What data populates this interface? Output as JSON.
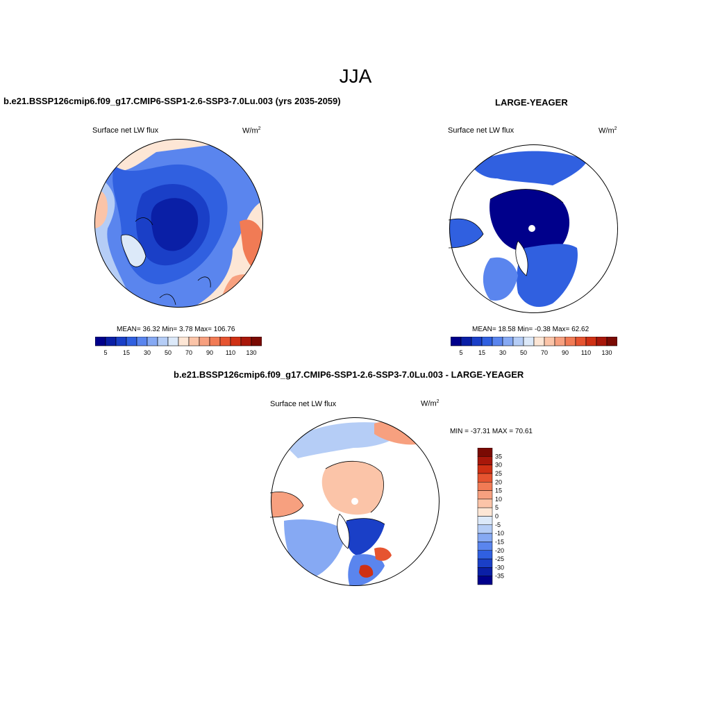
{
  "figure": {
    "season": "JJA",
    "panel_a": {
      "case_title": "b.e21.BSSP126cmip6.f09_g17.CMIP6-SSP1-2.6-SSP3-7.0Lu.003 (yrs 2035-2059)",
      "variable": "Surface net LW flux",
      "units_base": "W/m",
      "units_exp": "2",
      "stats": "MEAN=  36.32  Min=   3.78  Max= 106.76"
    },
    "panel_b": {
      "case_title": "LARGE-YEAGER",
      "variable": "Surface net LW flux",
      "units_base": "W/m",
      "units_exp": "2",
      "stats": "MEAN=  18.58  Min=  -0.38  Max=  62.62"
    },
    "panel_c": {
      "case_title": "b.e21.BSSP126cmip6.f09_g17.CMIP6-SSP1-2.6-SSP3-7.0Lu.003 - LARGE-YEAGER",
      "variable": "Surface net LW flux",
      "units_base": "W/m",
      "units_exp": "2",
      "stats": "MIN = -37.31 MAX =  70.61"
    }
  },
  "colorbars": {
    "abs": {
      "colors": [
        "#00008b",
        "#0a1fa6",
        "#1a3fc7",
        "#3060e0",
        "#5a85ee",
        "#86a9f3",
        "#b5cdf6",
        "#dce9f9",
        "#fde6d5",
        "#fbc4a8",
        "#f7a07f",
        "#f17b55",
        "#e65430",
        "#cf3014",
        "#a8170a",
        "#7a0a03"
      ],
      "labels": [
        "5",
        "15",
        "30",
        "50",
        "70",
        "90",
        "110",
        "130"
      ]
    },
    "diff": {
      "colors": [
        "#7a0a03",
        "#a8170a",
        "#cf3014",
        "#e65430",
        "#f17b55",
        "#f7a07f",
        "#fbc4a8",
        "#fde6d5",
        "#dce9f9",
        "#b5cdf6",
        "#86a9f3",
        "#5a85ee",
        "#3060e0",
        "#1a3fc7",
        "#0a1fa6",
        "#00008b"
      ],
      "labels": [
        "35",
        "30",
        "25",
        "20",
        "15",
        "10",
        "5",
        "0",
        "-5",
        "-10",
        "-15",
        "-20",
        "-25",
        "-30",
        "-35"
      ]
    }
  }
}
